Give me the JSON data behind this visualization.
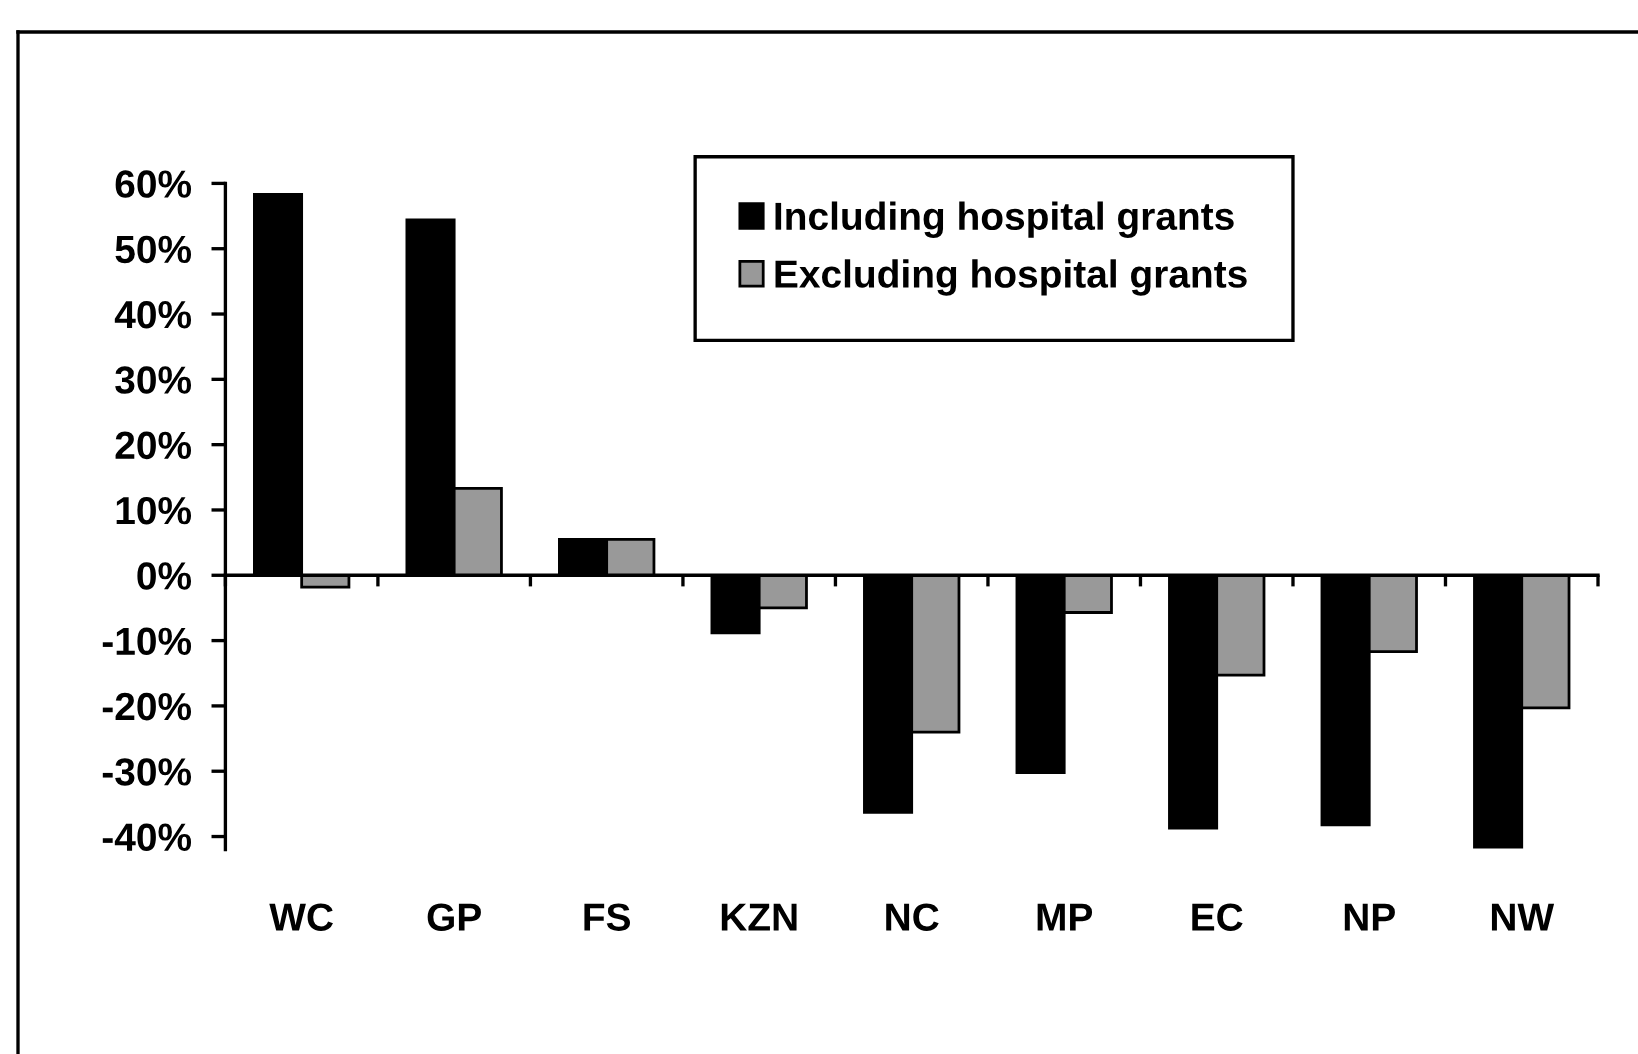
{
  "chart_data": {
    "type": "bar",
    "categories": [
      "WC",
      "GP",
      "FS",
      "KZN",
      "NC",
      "MP",
      "EC",
      "NP",
      "NW"
    ],
    "series": [
      {
        "name": "Including hospital grants",
        "color": "#000000",
        "values": [
          58.3,
          54.4,
          5.5,
          -8.8,
          -36.3,
          -30.2,
          -38.7,
          -38.2,
          -41.6
        ]
      },
      {
        "name": "Excluding hospital grants",
        "color": "#999999",
        "values": [
          -1.8,
          13.3,
          5.5,
          -5.0,
          -24.0,
          -5.7,
          -15.3,
          -11.7,
          -20.3
        ]
      }
    ],
    "ylim": [
      -42,
      60
    ],
    "yticks": [
      {
        "value": -40,
        "label": "-40%"
      },
      {
        "value": -30,
        "label": "-30%"
      },
      {
        "value": -20,
        "label": "-20%"
      },
      {
        "value": -10,
        "label": "-10%"
      },
      {
        "value": 0,
        "label": "0%"
      },
      {
        "value": 10,
        "label": "10%"
      },
      {
        "value": 20,
        "label": "20%"
      },
      {
        "value": 30,
        "label": "30%"
      },
      {
        "value": 40,
        "label": "40%"
      },
      {
        "value": 50,
        "label": "50%"
      },
      {
        "value": 60,
        "label": "60%"
      }
    ],
    "legend": "top"
  }
}
